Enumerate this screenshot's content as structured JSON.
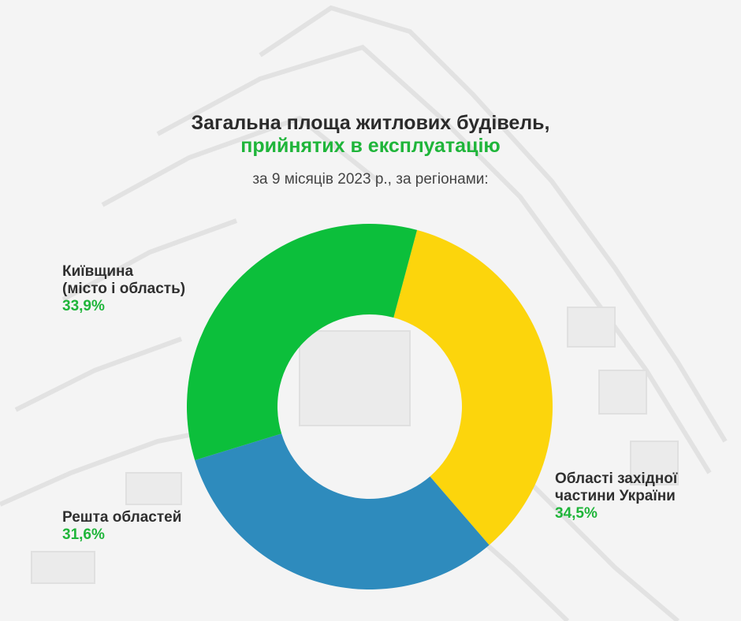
{
  "header": {
    "title_line1": "Загальна площа житлових будівель,",
    "title_line2": "прийнятих в експлуатацію",
    "subtitle": "за 9 місяців 2023 р., за регіонами:"
  },
  "colors": {
    "title_accent": "#1fb53a",
    "kyiv": "#0cbf3b",
    "west": "#fcd50c",
    "rest": "#2e8bbd"
  },
  "chart_data": {
    "type": "pie",
    "style": "donut",
    "title": "Загальна площа житлових будівель, прийнятих в експлуатацію",
    "subtitle": "за 9 місяців 2023 р., за регіонами:",
    "unit": "%",
    "slices": [
      {
        "key": "west",
        "label_lines": [
          "Області західної",
          "частини України"
        ],
        "value": 34.5,
        "value_label": "34,5%",
        "color": "#fcd50c"
      },
      {
        "key": "rest",
        "label_lines": [
          "Решта областей"
        ],
        "value": 31.6,
        "value_label": "31,6%",
        "color": "#2e8bbd"
      },
      {
        "key": "kyiv",
        "label_lines": [
          "Київщина",
          "(місто і область)"
        ],
        "value": 33.9,
        "value_label": "33,9%",
        "color": "#0cbf3b"
      }
    ],
    "legend": "labels beside slices"
  }
}
